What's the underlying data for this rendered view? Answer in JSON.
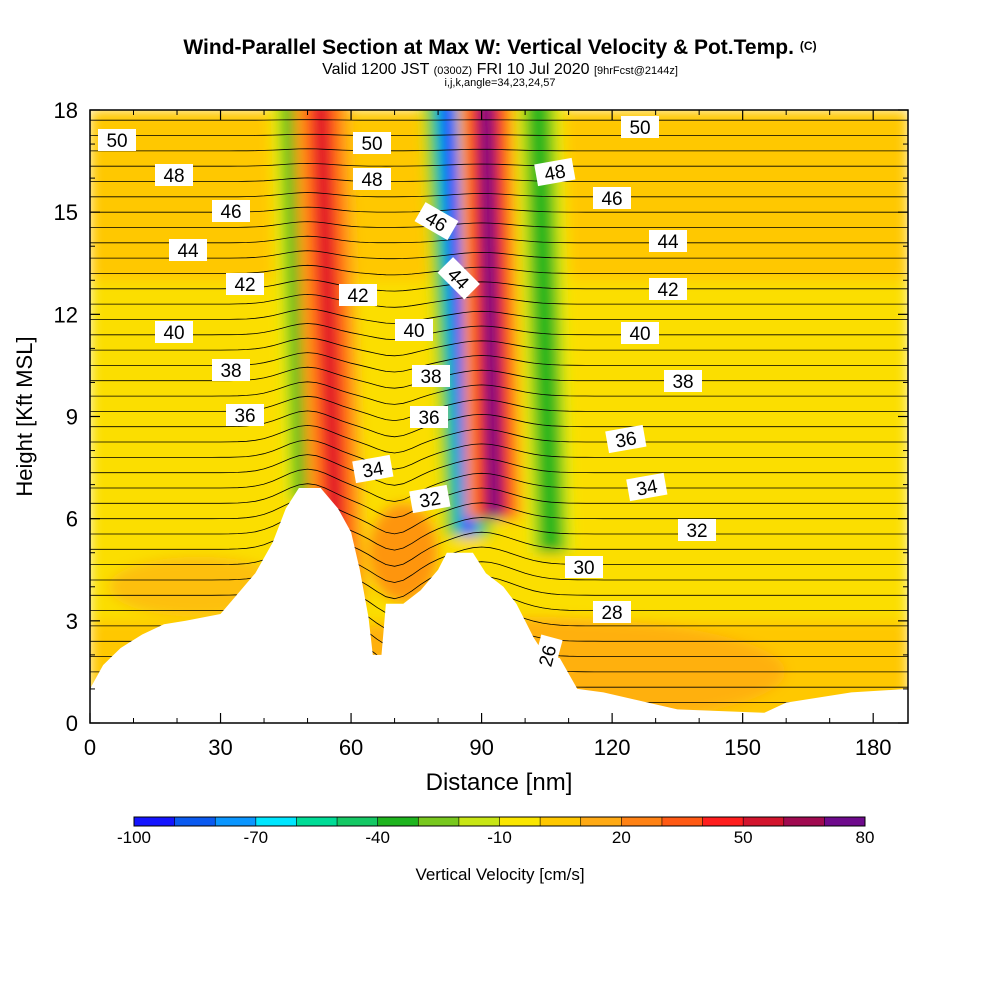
{
  "chart_data": {
    "type": "heatmap",
    "title": "Wind-Parallel Section at Max W: Vertical Velocity & Pot.Temp.",
    "title_tag": "(C)",
    "subtitle_valid": "Valid 1200 JST",
    "subtitle_utc": "(0300Z)",
    "subtitle_date": "FRI 10 Jul 2020",
    "subtitle_fcst": "[9hrFcst@2144z]",
    "subtitle2": "i,j,k,angle=34,23,24,57",
    "xlabel": "Distance [nm]",
    "ylabel": "Height [Kft MSL]",
    "xlim": [
      0,
      188
    ],
    "ylim": [
      0,
      18
    ],
    "x_ticks": [
      "0",
      "30",
      "60",
      "90",
      "120",
      "150",
      "180"
    ],
    "y_ticks": [
      "0",
      "3",
      "6",
      "9",
      "12",
      "15",
      "18"
    ],
    "colorbar": {
      "label": "Vertical Velocity [cm/s]",
      "tick_labels": [
        "-100",
        "-70",
        "-40",
        "-10",
        "20",
        "50",
        "80"
      ],
      "colors": [
        "#1414ff",
        "#0a5af0",
        "#0a96ff",
        "#00e6ff",
        "#00dc96",
        "#14c864",
        "#1eb41e",
        "#78c81e",
        "#c8e614",
        "#fae600",
        "#ffc800",
        "#ffaa14",
        "#ff8214",
        "#ff5a14",
        "#ff1e1e",
        "#d2142d",
        "#a00a50",
        "#6e0a8c"
      ]
    },
    "theta_labels_left": [
      "50",
      "48",
      "46",
      "44",
      "42",
      "40",
      "38",
      "36"
    ],
    "theta_labels_mid": [
      "50",
      "48",
      "46",
      "44",
      "42",
      "40",
      "38",
      "36",
      "34",
      "32"
    ],
    "theta_labels_right": [
      "50",
      "48",
      "46",
      "44",
      "42",
      "40",
      "38",
      "36",
      "34",
      "32",
      "30",
      "28",
      "26"
    ],
    "terrain_kft": [
      [
        0,
        1.0
      ],
      [
        3,
        1.7
      ],
      [
        7,
        2.2
      ],
      [
        12,
        2.6
      ],
      [
        17,
        2.9
      ],
      [
        22,
        3.0
      ],
      [
        30,
        3.2
      ],
      [
        34,
        3.8
      ],
      [
        38,
        4.4
      ],
      [
        42,
        5.3
      ],
      [
        45,
        6.3
      ],
      [
        48,
        6.9
      ],
      [
        53,
        6.9
      ],
      [
        57,
        6.3
      ],
      [
        60,
        5.6
      ],
      [
        62,
        4.5
      ],
      [
        64,
        3.1
      ],
      [
        65,
        2.0
      ],
      [
        67,
        2.0
      ],
      [
        68,
        3.5
      ],
      [
        72,
        3.5
      ],
      [
        76,
        3.9
      ],
      [
        80,
        4.5
      ],
      [
        82,
        5.0
      ],
      [
        88,
        5.0
      ],
      [
        91,
        4.4
      ],
      [
        95,
        4.0
      ],
      [
        98,
        3.5
      ],
      [
        100,
        3.0
      ],
      [
        102,
        2.5
      ],
      [
        104,
        2.1
      ],
      [
        108,
        1.9
      ],
      [
        112,
        1.0
      ],
      [
        118,
        0.9
      ],
      [
        135,
        0.4
      ],
      [
        155,
        0.3
      ],
      [
        160,
        0.6
      ],
      [
        175,
        0.9
      ],
      [
        188,
        1.0
      ]
    ],
    "updraft_columns": [
      {
        "w_cm_s": 50,
        "base": [
          57,
          3.5
        ],
        "top": [
          53,
          18
        ]
      },
      {
        "w_cm_s": 80,
        "base": [
          93,
          6.0
        ],
        "top": [
          91,
          18
        ]
      }
    ],
    "downdraft_columns": [
      {
        "w_cm_s": -40,
        "base": [
          50,
          6.5
        ],
        "top": [
          47,
          18
        ]
      },
      {
        "w_cm_s": -100,
        "base": [
          87,
          5.5
        ],
        "top": [
          82,
          18
        ]
      },
      {
        "w_cm_s": -40,
        "base": [
          106,
          5.0
        ],
        "top": [
          103,
          18
        ]
      }
    ]
  }
}
